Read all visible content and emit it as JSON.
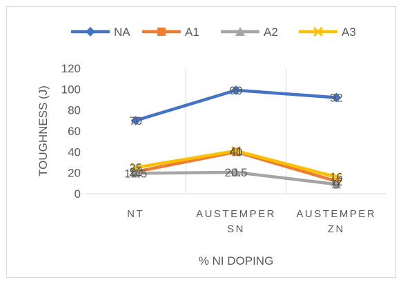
{
  "chart_data": {
    "type": "line",
    "title": "",
    "xlabel": "% NI DOPING",
    "ylabel": "TOUGHNESS (J)",
    "ylim": [
      0,
      120
    ],
    "yticks": [
      0,
      20,
      40,
      60,
      80,
      100,
      120
    ],
    "grid": "vertical",
    "legend": "top",
    "categories": [
      [
        "NT"
      ],
      [
        "AUSTEMPER",
        "SN"
      ],
      [
        "AUSTEMPER",
        "ZN"
      ]
    ],
    "series": [
      {
        "name": "NA",
        "values": [
          70,
          99,
          92
        ],
        "labels": [
          "70",
          "99",
          "92"
        ],
        "color": "#4472c4",
        "marker": "diamond"
      },
      {
        "name": "A1",
        "values": [
          21,
          40,
          12
        ],
        "labels": [
          "21",
          "40",
          "12"
        ],
        "color": "#ed7d31",
        "marker": "square"
      },
      {
        "name": "A2",
        "values": [
          19.5,
          20.5,
          9
        ],
        "labels": [
          "19.5",
          "20.5",
          "9"
        ],
        "color": "#a5a5a5",
        "marker": "triangle"
      },
      {
        "name": "A3",
        "values": [
          25,
          41,
          16
        ],
        "labels": [
          "25",
          "41",
          "16"
        ],
        "color": "#ffc000",
        "marker": "x"
      }
    ]
  }
}
